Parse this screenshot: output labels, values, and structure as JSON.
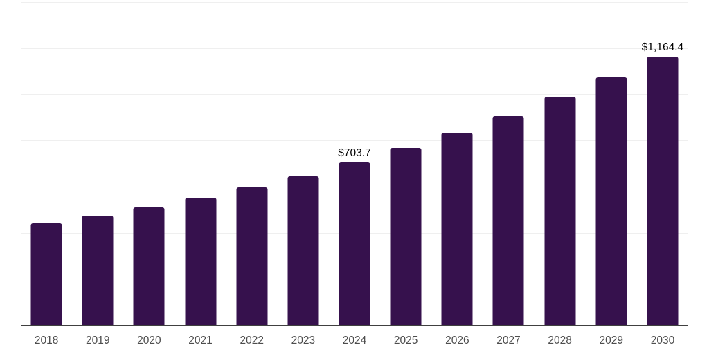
{
  "chart_data": {
    "type": "bar",
    "title": "",
    "xlabel": "",
    "ylabel": "",
    "categories": [
      "2018",
      "2019",
      "2020",
      "2021",
      "2022",
      "2023",
      "2024",
      "2025",
      "2026",
      "2027",
      "2028",
      "2029",
      "2030"
    ],
    "values": [
      440,
      473,
      509,
      551,
      596,
      646,
      703.7,
      766,
      832,
      906,
      990,
      1073,
      1164.4
    ],
    "value_labels": [
      "",
      "",
      "",
      "",
      "",
      "",
      "$703.7",
      "",
      "",
      "",
      "",
      "",
      "$1,164.4"
    ],
    "ylim": [
      0,
      1400
    ],
    "gridline_step": 200,
    "grid": true,
    "legend": false,
    "y_tick_labels_visible": false,
    "colors": {
      "bar": "#36114d",
      "gridline": "#efefef",
      "axis_line": "#404040",
      "x_tick_label": "#4d4d4d",
      "value_label": "#000000",
      "background": "#ffffff"
    }
  }
}
